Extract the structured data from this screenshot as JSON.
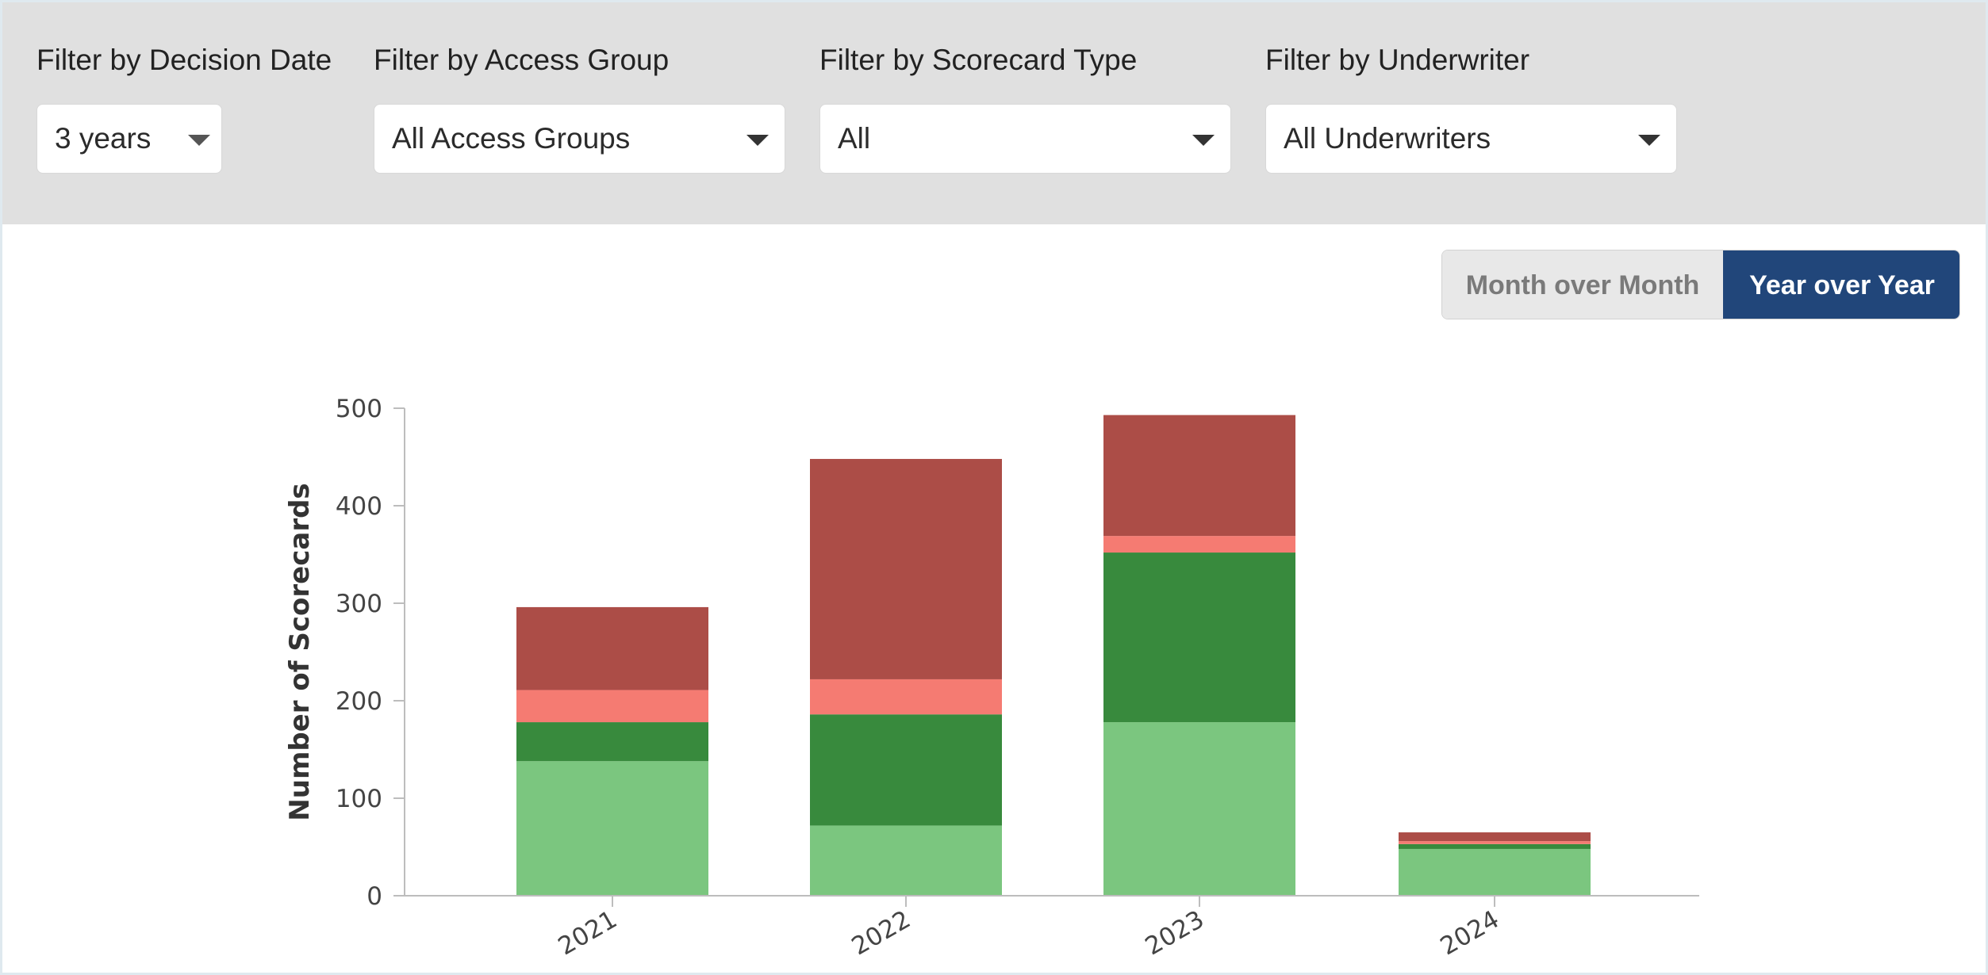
{
  "filters": [
    {
      "label": "Filter by Decision Date",
      "value": "3 years"
    },
    {
      "label": "Filter by Access Group",
      "value": "All Access Groups"
    },
    {
      "label": "Filter by Scorecard Type",
      "value": "All"
    },
    {
      "label": "Filter by Underwriter",
      "value": "All Underwriters"
    }
  ],
  "view_toggle": {
    "options": [
      "Month over Month",
      "Year over Year"
    ],
    "selected": "Year over Year"
  },
  "colors": {
    "filter_bar": "#e0e0e0",
    "toggle_active": "#21467a",
    "series": [
      "#7bc67f",
      "#388a3d",
      "#f57b72",
      "#ac4d47"
    ]
  },
  "chart_data": {
    "type": "bar",
    "stacked": true,
    "categories": [
      "2021",
      "2022",
      "2023",
      "2024"
    ],
    "series": [
      {
        "values": [
          138,
          72,
          178,
          48
        ]
      },
      {
        "values": [
          40,
          114,
          174,
          5
        ]
      },
      {
        "values": [
          33,
          36,
          17,
          3
        ]
      },
      {
        "values": [
          85,
          226,
          124,
          9
        ]
      }
    ],
    "ylabel": "Number of Scorecards",
    "xlabel": "",
    "ylim": [
      0,
      500
    ],
    "yticks": [
      0,
      100,
      200,
      300,
      400,
      500
    ],
    "grid": false,
    "legend": "none"
  }
}
